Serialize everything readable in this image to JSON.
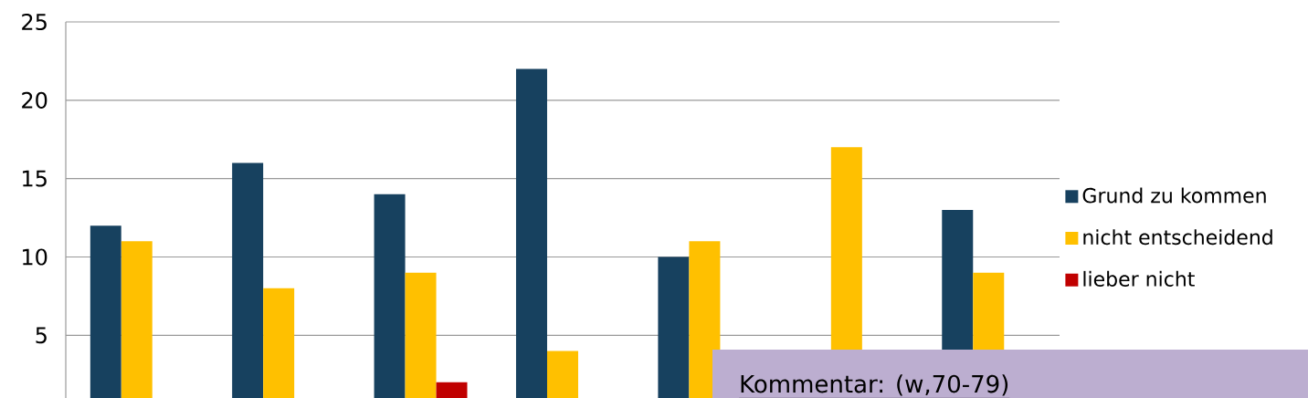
{
  "chart_data": {
    "type": "bar",
    "categories": [
      null,
      null,
      null,
      null,
      null,
      null,
      null
    ],
    "series": [
      {
        "name": "Grund zu kommen",
        "color": "#17415f",
        "values": [
          12,
          16,
          14,
          22,
          10,
          null,
          13
        ]
      },
      {
        "name": "nicht entscheidend",
        "color": "#ffc000",
        "values": [
          11,
          8,
          9,
          4,
          11,
          17,
          9
        ]
      },
      {
        "name": "lieber nicht",
        "color": "#c00000",
        "values": [
          null,
          null,
          2,
          null,
          null,
          null,
          null
        ]
      }
    ],
    "ylim": [
      1,
      25
    ],
    "yticks": [
      5,
      10,
      15,
      20,
      25
    ],
    "grid": "y",
    "legend": "right",
    "annotations": [
      "Kommentar: (w,70-79)"
    ]
  }
}
